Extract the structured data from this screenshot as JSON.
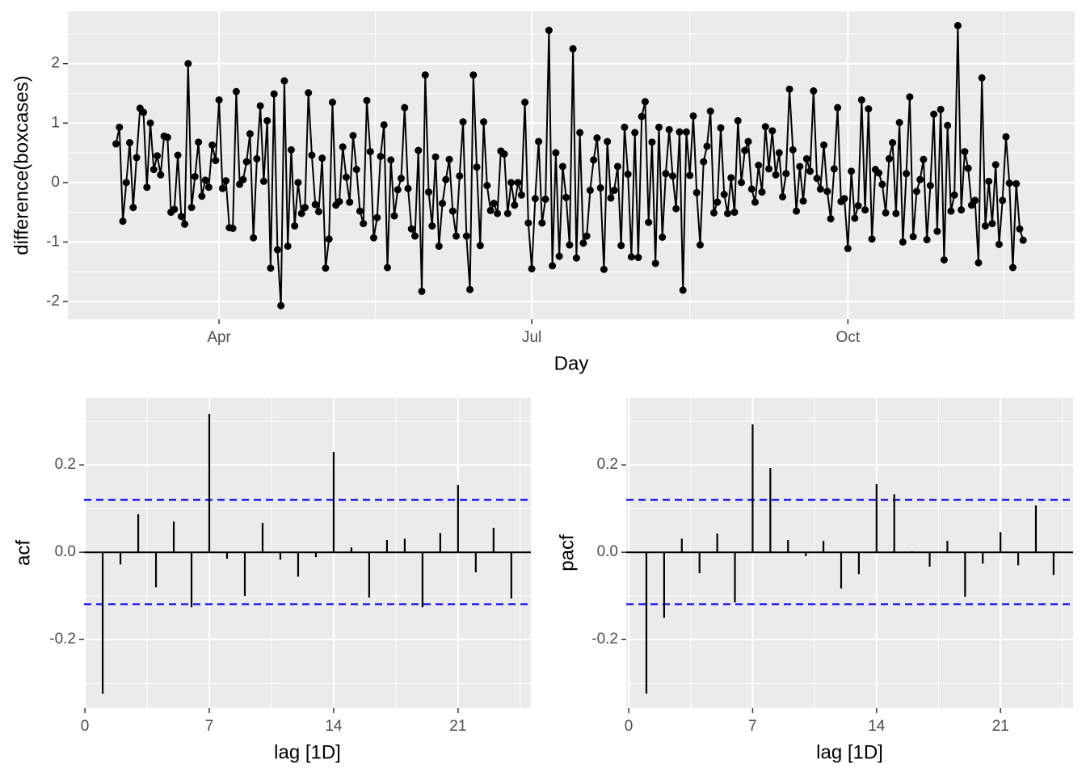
{
  "chart_data": [
    {
      "type": "line",
      "xlabel": "Day",
      "ylabel": "difference(boxcases)",
      "color": "#000000",
      "grid": true,
      "xlim": [
        47,
        340
      ],
      "xticks": [
        {
          "value": 91,
          "label": "Apr"
        },
        {
          "value": 182,
          "label": "Jul"
        },
        {
          "value": 274,
          "label": "Oct"
        }
      ],
      "ylim": [
        -2.3,
        2.88
      ],
      "yticks": [
        -2,
        -1,
        0,
        1,
        2
      ],
      "x": [
        61,
        62,
        63,
        64,
        65,
        66,
        67,
        68,
        69,
        70,
        71,
        72,
        73,
        74,
        75,
        76,
        77,
        78,
        79,
        80,
        81,
        82,
        83,
        84,
        85,
        86,
        87,
        88,
        89,
        90,
        91,
        92,
        93,
        94,
        95,
        96,
        97,
        98,
        99,
        100,
        101,
        102,
        103,
        104,
        105,
        106,
        107,
        108,
        109,
        110,
        111,
        112,
        113,
        114,
        115,
        116,
        117,
        118,
        119,
        120,
        121,
        122,
        123,
        124,
        125,
        126,
        127,
        128,
        129,
        130,
        131,
        132,
        133,
        134,
        135,
        136,
        137,
        138,
        139,
        140,
        141,
        142,
        143,
        144,
        145,
        146,
        147,
        148,
        149,
        150,
        151,
        152,
        153,
        154,
        155,
        156,
        157,
        158,
        159,
        160,
        161,
        162,
        163,
        164,
        165,
        166,
        167,
        168,
        169,
        170,
        171,
        172,
        173,
        174,
        175,
        176,
        177,
        178,
        179,
        180,
        181,
        182,
        183,
        184,
        185,
        186,
        187,
        188,
        189,
        190,
        191,
        192,
        193,
        194,
        195,
        196,
        197,
        198,
        199,
        200,
        201,
        202,
        203,
        204,
        205,
        206,
        207,
        208,
        209,
        210,
        211,
        212,
        213,
        214,
        215,
        216,
        217,
        218,
        219,
        220,
        221,
        222,
        223,
        224,
        225,
        226,
        227,
        228,
        229,
        230,
        231,
        232,
        233,
        234,
        235,
        236,
        237,
        238,
        239,
        240,
        241,
        242,
        243,
        244,
        245,
        246,
        247,
        248,
        249,
        250,
        251,
        252,
        253,
        254,
        255,
        256,
        257,
        258,
        259,
        260,
        261,
        262,
        263,
        264,
        265,
        266,
        267,
        268,
        269,
        270,
        271,
        272,
        273,
        274,
        275,
        276,
        277,
        278,
        279,
        280,
        281,
        282,
        283,
        284,
        285,
        286,
        287,
        288,
        289,
        290,
        291,
        292,
        293,
        294,
        295,
        296,
        297,
        298,
        299,
        300,
        301,
        302,
        303,
        304,
        305,
        306,
        307,
        308,
        309,
        310,
        311,
        312,
        313,
        314,
        315,
        316,
        317,
        318,
        319,
        320,
        321,
        322,
        323,
        324,
        325
      ],
      "values": [
        0.65,
        0.93,
        -0.65,
        0,
        0.67,
        -0.42,
        0.42,
        1.25,
        1.18,
        -0.08,
        1.0,
        0.22,
        0.45,
        0.13,
        0.78,
        0.76,
        -0.5,
        -0.45,
        0.46,
        -0.57,
        -0.7,
        2.0,
        -0.42,
        0.1,
        0.68,
        -0.23,
        0.04,
        -0.08,
        0.63,
        0.37,
        1.39,
        -0.1,
        0.03,
        -0.76,
        -0.77,
        1.53,
        -0.03,
        0.05,
        0.35,
        0.82,
        -0.93,
        0.4,
        1.29,
        0.02,
        1.04,
        -1.44,
        1.49,
        -1.13,
        -2.07,
        1.71,
        -1.07,
        0.55,
        -0.73,
        0,
        -0.52,
        -0.42,
        1.51,
        0.46,
        -0.37,
        -0.49,
        0.41,
        -1.44,
        -0.95,
        1.35,
        -0.38,
        -0.32,
        0.6,
        0.09,
        -0.33,
        0.79,
        0.22,
        -0.48,
        -0.69,
        1.38,
        0.52,
        -0.93,
        -0.59,
        0.44,
        0.97,
        -1.43,
        0.38,
        -0.56,
        -0.12,
        0.07,
        1.26,
        -0.1,
        -0.78,
        -0.9,
        0.54,
        -1.83,
        1.81,
        -0.16,
        -0.73,
        0.43,
        -1.07,
        -0.35,
        0.05,
        0.39,
        -0.48,
        -0.9,
        0.11,
        1.02,
        -0.9,
        -1.8,
        1.81,
        0.26,
        -1.06,
        1.02,
        -0.05,
        -0.47,
        -0.35,
        -0.52,
        0.53,
        0.48,
        -0.52,
        0,
        -0.38,
        0,
        -0.21,
        1.35,
        -0.68,
        -1.45,
        -0.27,
        0.69,
        -0.68,
        -0.28,
        2.56,
        -1.4,
        0.5,
        -1.24,
        0.27,
        -0.25,
        -1.05,
        2.25,
        -1.27,
        0.84,
        -1.02,
        -0.9,
        -0.13,
        0.38,
        0.75,
        -0.09,
        -1.46,
        0.69,
        -0.26,
        -0.13,
        0.27,
        -1.06,
        0.93,
        0.14,
        -1.25,
        0.84,
        -1.26,
        1.11,
        1.36,
        -0.67,
        0.68,
        -1.36,
        0.93,
        -0.92,
        0.15,
        0.89,
        0.11,
        -0.44,
        0.85,
        -1.81,
        0.85,
        0.12,
        1.12,
        -0.17,
        -1.05,
        0.35,
        0.61,
        1.2,
        -0.51,
        -0.33,
        0.92,
        -0.2,
        -0.52,
        0.08,
        -0.5,
        1.04,
        0,
        0.54,
        0.69,
        -0.11,
        -0.33,
        0.29,
        -0.16,
        0.94,
        0.23,
        0.87,
        0.13,
        0.5,
        -0.24,
        0.15,
        1.57,
        0.55,
        -0.48,
        0.27,
        -0.31,
        0.4,
        0.19,
        1.54,
        0.07,
        -0.11,
        0.63,
        -0.15,
        -0.61,
        0.23,
        1.26,
        -0.32,
        -0.27,
        -1.11,
        0.19,
        -0.6,
        -0.39,
        1.39,
        -0.46,
        1.24,
        -0.95,
        0.22,
        0.16,
        -0.03,
        -0.51,
        0.4,
        0.67,
        -0.52,
        1.01,
        -1.0,
        0.15,
        1.44,
        -0.91,
        -0.15,
        0.05,
        0.39,
        -0.96,
        -0.05,
        1.15,
        -0.82,
        1.23,
        -1.3,
        0.96,
        -0.48,
        -0.21,
        2.64,
        -0.46,
        0.52,
        0.24,
        -0.38,
        -0.3,
        -1.35,
        1.76,
        -0.73,
        0.02,
        -0.69,
        0.3,
        -1.04,
        -0.3,
        0.77,
        -0.01,
        -1.43,
        -0.02,
        -0.78,
        -0.97
      ]
    },
    {
      "type": "bar",
      "xlabel": "lag [1D]",
      "ylabel": "acf",
      "color": "#000000",
      "grid": true,
      "zero_line": true,
      "xlim": [
        -0.05,
        25.1
      ],
      "xticks": [
        0,
        7,
        14,
        21
      ],
      "ylim": [
        -0.357,
        0.354
      ],
      "yticks": [
        -0.2,
        {
          "value": 0,
          "label": "0.0"
        },
        0.2
      ],
      "hlines": [
        0.12,
        -0.119
      ],
      "hline_color": "#0000ff",
      "x": [
        1,
        2,
        3,
        4,
        5,
        6,
        7,
        8,
        9,
        10,
        11,
        12,
        13,
        14,
        15,
        16,
        17,
        18,
        19,
        20,
        21,
        22,
        23,
        24
      ],
      "values": [
        -0.324,
        -0.028,
        0.087,
        -0.08,
        0.07,
        -0.126,
        0.317,
        -0.015,
        -0.1,
        0.067,
        -0.017,
        -0.056,
        -0.011,
        0.23,
        0.011,
        -0.104,
        0.028,
        0.031,
        -0.126,
        0.044,
        0.154,
        -0.046,
        0.056,
        -0.106
      ]
    },
    {
      "type": "bar",
      "xlabel": "lag [1D]",
      "ylabel": "pacf",
      "color": "#000000",
      "grid": true,
      "zero_line": true,
      "xlim": [
        -0.14,
        25.1
      ],
      "xticks": [
        0,
        7,
        14,
        21
      ],
      "ylim": [
        -0.357,
        0.354
      ],
      "yticks": [
        -0.2,
        {
          "value": 0,
          "label": "0.0"
        },
        0.2
      ],
      "hlines": [
        0.12,
        -0.119
      ],
      "hline_color": "#0000ff",
      "x": [
        1,
        2,
        3,
        4,
        5,
        6,
        7,
        8,
        9,
        10,
        11,
        12,
        13,
        14,
        15,
        16,
        17,
        18,
        19,
        20,
        21,
        22,
        23,
        24
      ],
      "values": [
        -0.324,
        -0.15,
        0.031,
        -0.048,
        0.043,
        -0.115,
        0.293,
        0.193,
        0.028,
        -0.009,
        0.026,
        -0.083,
        -0.05,
        0.156,
        0.133,
        0.002,
        -0.033,
        0.026,
        -0.102,
        -0.026,
        0.046,
        -0.03,
        0.107,
        -0.052
      ]
    }
  ]
}
